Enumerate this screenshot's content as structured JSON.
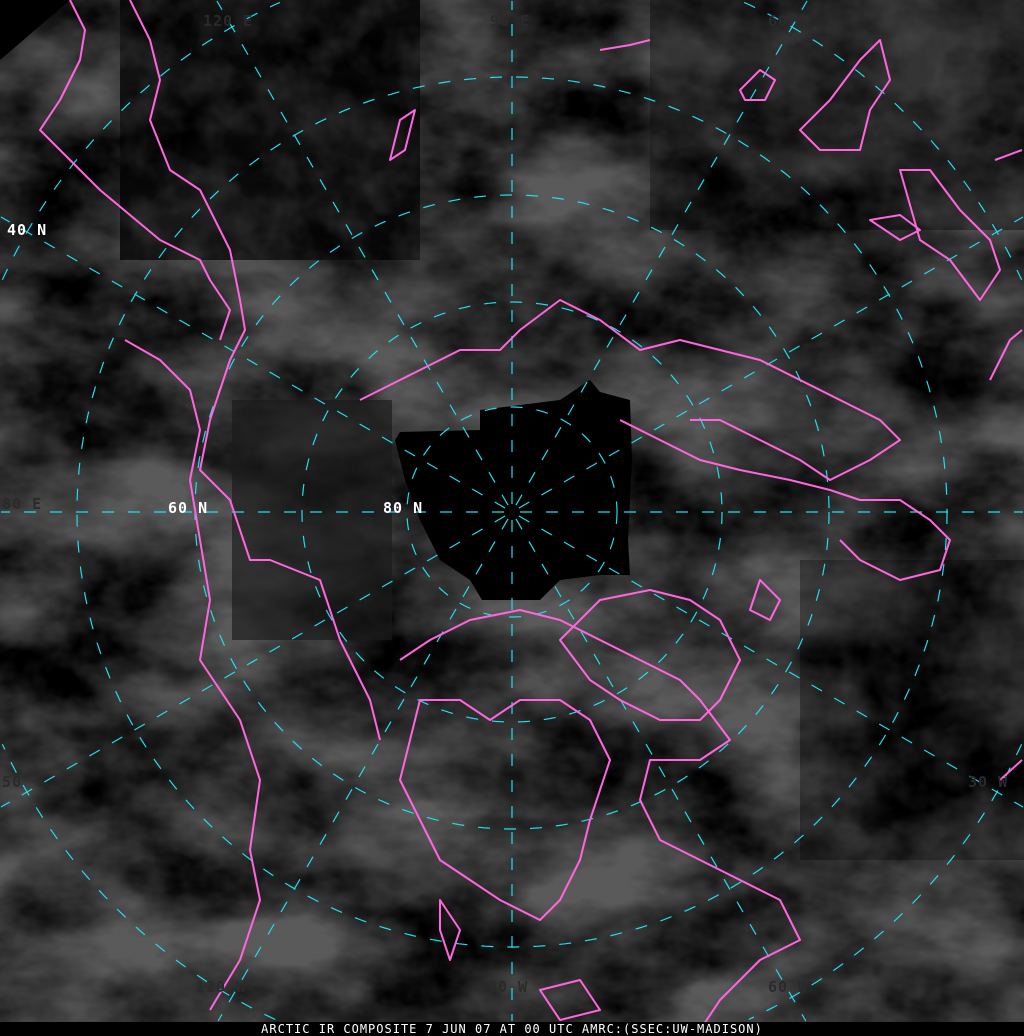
{
  "caption": "ARCTIC IR COMPOSITE 7 JUN 07 AT 00 UTC AMRC:(SSEC:UW-MADISON)",
  "colors": {
    "coastline": "#ff66dd",
    "graticule": "#22ddee",
    "background": "#000000"
  },
  "meridian_labels": {
    "top_left": "120 E",
    "top": "90 E",
    "top_right": "60 E",
    "left": "80 E",
    "bottom_left_edge": "50",
    "bottom_right_edge": "30 W",
    "bottom_left": "120 W",
    "bottom": "90 W",
    "bottom_right": "60 W"
  },
  "parallel_labels": {
    "lat40": "40 N",
    "lat60": "60 N",
    "lat80": "80 N"
  }
}
